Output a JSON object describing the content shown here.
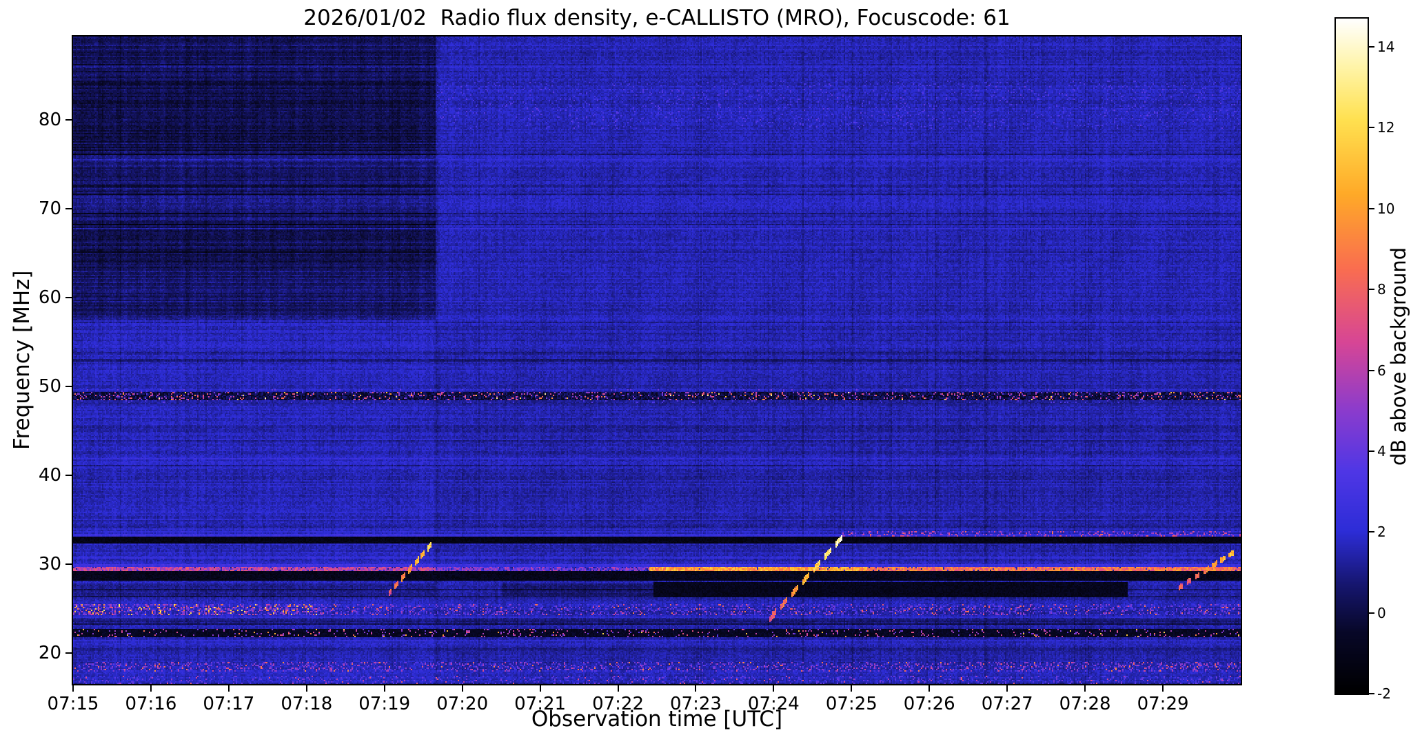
{
  "chart_data": {
    "type": "heatmap",
    "title": "2026/01/02  Radio flux density, e-CALLISTO (MRO), Focuscode: 61",
    "xlabel": "Observation time [UTC]",
    "ylabel": "Frequency [MHz]",
    "colorbar_label": "dB above background",
    "x_ticks": [
      "07:15",
      "07:16",
      "07:17",
      "07:18",
      "07:19",
      "07:20",
      "07:21",
      "07:22",
      "07:23",
      "07:24",
      "07:25",
      "07:26",
      "07:27",
      "07:28",
      "07:29"
    ],
    "x_range_minutes": [
      0,
      15
    ],
    "y_ticks": [
      80,
      70,
      60,
      50,
      40,
      30,
      20
    ],
    "freq_range_mhz": [
      16.5,
      89.4
    ],
    "value_range_db": [
      -2,
      14.7
    ],
    "colorbar_ticks": [
      14,
      12,
      10,
      8,
      6,
      4,
      2,
      0,
      -2
    ],
    "grid": false,
    "colormap_stops": [
      [
        0.0,
        0,
        0,
        0
      ],
      [
        0.09,
        8,
        8,
        40
      ],
      [
        0.16,
        22,
        22,
        110
      ],
      [
        0.24,
        45,
        45,
        215
      ],
      [
        0.33,
        80,
        55,
        230
      ],
      [
        0.42,
        140,
        60,
        205
      ],
      [
        0.52,
        215,
        70,
        150
      ],
      [
        0.63,
        250,
        110,
        80
      ],
      [
        0.74,
        255,
        170,
        40
      ],
      [
        0.85,
        255,
        225,
        80
      ],
      [
        0.93,
        255,
        245,
        170
      ],
      [
        1.0,
        255,
        255,
        255
      ]
    ],
    "features": {
      "background_db": 1.45,
      "quiet_region": {
        "t_end_min": 4.66,
        "f_min_mhz": 57.5,
        "attenuation_db": 0.85,
        "inner_dark_bands": [
          [
            76.5,
            84.5,
            0.55
          ],
          [
            63.0,
            68.5,
            0.4
          ],
          [
            84.5,
            89.4,
            0.2
          ]
        ]
      },
      "right_top_brighten_db": 0.12,
      "rfi_line_49mhz": {
        "f0": 48.5,
        "f1": 49.4
      },
      "dark_bands": [
        {
          "f0": 32.35,
          "f1": 33.1,
          "t0": 0,
          "t1": 15,
          "base": -1.6,
          "jitter": 0.9
        },
        {
          "f0": 28.15,
          "f1": 29.2,
          "t0": 0,
          "t1": 15,
          "base": -1.5,
          "jitter": 1.0
        },
        {
          "f0": 26.2,
          "f1": 28.0,
          "t0": 7.45,
          "t1": 13.55,
          "base": -1.4,
          "jitter": 0.9
        },
        {
          "f0": 21.8,
          "f1": 22.65,
          "t0": 0,
          "t1": 15,
          "base": -1.2,
          "jitter": 0.9
        }
      ],
      "add_bands": [
        {
          "f0": 26.5,
          "f1": 27.9,
          "t0": 5.5,
          "t1": 7.45,
          "delta": -0.7
        },
        {
          "f0": 26.3,
          "f1": 27.9,
          "t0": 0,
          "t1": 4.66,
          "delta": -0.5
        },
        {
          "f0": 19.9,
          "f1": 20.55,
          "t0": 0,
          "t1": 15,
          "delta": -0.45
        },
        {
          "f0": 23.2,
          "f1": 23.8,
          "t0": 0,
          "t1": 15,
          "delta": -0.5
        },
        {
          "f0": 34.0,
          "f1": 34.5,
          "t0": 0,
          "t1": 15,
          "delta": -0.3
        },
        {
          "f0": 29.62,
          "f1": 30.05,
          "t0": 0,
          "t1": 15,
          "delta": 1.1
        },
        {
          "f0": 33.1,
          "f1": 33.7,
          "t0": 0,
          "t1": 15,
          "delta": 0.7
        }
      ],
      "bright_line_29mhz": {
        "f0": 29.25,
        "f1": 29.62,
        "segments": [
          {
            "t0": 0,
            "t1": 4.66,
            "level": 6.2,
            "gap_prob": 0.08
          },
          {
            "t0": 4.66,
            "t1": 7.4,
            "level": 4.6,
            "gap_prob": 0.2
          },
          {
            "t0": 7.4,
            "t1": 10.2,
            "level": 10.0,
            "gap_prob": 0.02
          },
          {
            "t0": 10.2,
            "t1": 15,
            "level": 8.6,
            "gap_prob": 0.05
          }
        ]
      },
      "speckle_bands": [
        {
          "f0": 24.2,
          "f1": 25.45,
          "t0": 0,
          "t1": 3.2,
          "p_strong": 0.12,
          "strong_lo": 6,
          "strong_hi": 13,
          "p_weak": 0.3,
          "weak_lo": 3,
          "weak_hi": 6
        },
        {
          "f0": 24.2,
          "f1": 25.45,
          "t0": 3.2,
          "t1": 15,
          "p_strong": 0.05,
          "strong_lo": 5,
          "strong_hi": 9,
          "p_weak": 0.2,
          "weak_lo": 2.5,
          "weak_hi": 5
        },
        {
          "f0": 21.8,
          "f1": 22.65,
          "t0": 0,
          "t1": 15,
          "p_strong": 0.012,
          "strong_lo": 8,
          "strong_hi": 12,
          "p_weak": 0.09,
          "weak_lo": 3.5,
          "weak_hi": 7.5
        },
        {
          "f0": 17.95,
          "f1": 18.95,
          "t0": 0,
          "t1": 15,
          "p_strong": 0.03,
          "strong_lo": 6,
          "strong_hi": 9.5,
          "p_weak": 0.2,
          "weak_lo": 2.5,
          "weak_hi": 6
        },
        {
          "f0": 33.1,
          "f1": 33.65,
          "t0": 9.85,
          "t1": 15,
          "p_strong": 0.04,
          "strong_lo": 6,
          "strong_hi": 9,
          "p_weak": 0.2,
          "weak_lo": 3.2,
          "weak_hi": 7
        },
        {
          "f0": 16.5,
          "f1": 17.4,
          "t0": 0,
          "t1": 15,
          "p_strong": 0.02,
          "strong_lo": 5,
          "strong_hi": 8,
          "p_weak": 0.12,
          "weak_lo": 2.8,
          "weak_hi": 4.5
        }
      ],
      "drift_streaks": [
        {
          "t0": 4.05,
          "t1": 4.62,
          "f0": 26.6,
          "f1": 32.4,
          "width_mhz": 0.33,
          "b0": 6,
          "b1": 11
        },
        {
          "t0": 8.95,
          "t1": 9.9,
          "f0": 23.8,
          "f1": 33.2,
          "width_mhz": 0.33,
          "b0": 6,
          "b1": 13
        },
        {
          "t0": 14.2,
          "t1": 14.92,
          "f0": 27.3,
          "f1": 31.4,
          "width_mhz": 0.3,
          "b0": 6,
          "b1": 10
        }
      ]
    }
  }
}
